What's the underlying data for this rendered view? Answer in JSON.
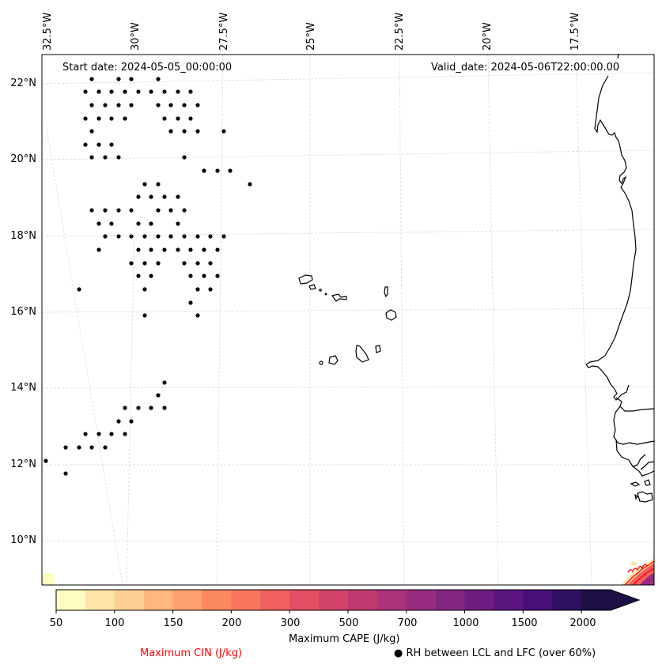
{
  "map": {
    "start_date_label": "Start date: 2024-05-05_00:00:00",
    "valid_date_label": "Valid_date: 2024-05-06T22:00:00.00",
    "longitude_labels": [
      "32.5°W",
      "30°W",
      "27.5°W",
      "25°W",
      "22.5°W",
      "20°W",
      "17.5°W"
    ],
    "latitude_labels": [
      "22°N",
      "20°N",
      "18°N",
      "16°N",
      "14°N",
      "12°N",
      "10°N"
    ],
    "extent": {
      "lon_min": -32.6,
      "lon_max": -15.2,
      "lat_min": 8.9,
      "lat_max": 22.7
    },
    "rh_marker_color": "#000000",
    "coastline_color": "#000000",
    "gridline_color": "#d9d9d9"
  },
  "colorbar": {
    "label": "Maximum CAPE (J/kg)",
    "tick_labels": [
      "50",
      "100",
      "150",
      "200",
      "300",
      "500",
      "700",
      "1000",
      "1500",
      "2000"
    ],
    "extend": "max",
    "colors": [
      "#fcfdbf",
      "#fde5a7",
      "#fecf92",
      "#feb77e",
      "#fea16e",
      "#fc8961",
      "#f8765c",
      "#f0605d",
      "#e34e65",
      "#d24368",
      "#bf3a6f",
      "#ab337c",
      "#972c80",
      "#822681",
      "#6e1e81",
      "#5a167e",
      "#461078",
      "#2f1163",
      "#1c1044"
    ],
    "extend_color": "#1c1044"
  },
  "legend": {
    "cin_label": "Maximum CIN (J/kg)",
    "cin_color": "#ff0000",
    "rh_label": "● RH between LCL and LFC (over 60%)"
  }
}
